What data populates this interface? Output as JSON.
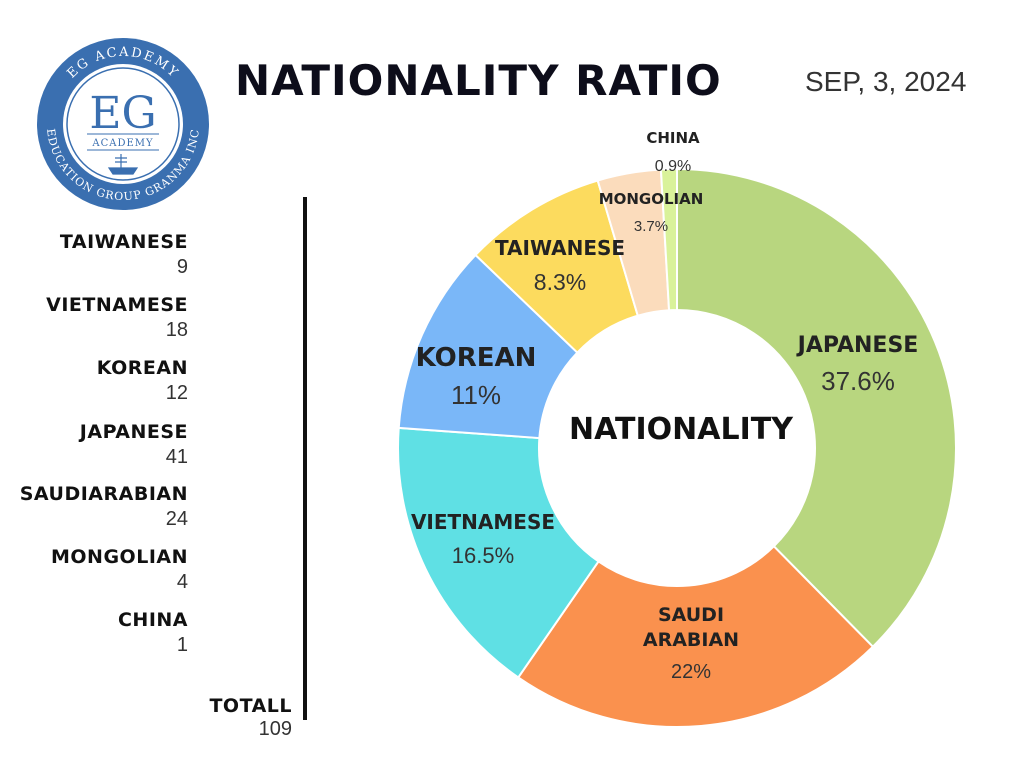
{
  "logo": {
    "top_text": "EG ACADEMY",
    "initials": "EG",
    "sub_text": "ACADEMY",
    "bottom_text": "EDUCATION GROUP GRANMA INC",
    "color": "#3a6fb0"
  },
  "title": "NATIONALITY RATIO",
  "date": "SEP, 3, 2024",
  "legend": [
    {
      "name": "TAIWANESE",
      "value": "9"
    },
    {
      "name": "VIETNAMESE",
      "value": "18"
    },
    {
      "name": "KOREAN",
      "value": "12"
    },
    {
      "name": "JAPANESE",
      "value": "41"
    },
    {
      "name": "SAUDIARABIAN",
      "value": "24"
    },
    {
      "name": "MONGOLIAN",
      "value": "4"
    },
    {
      "name": "CHINA",
      "value": "1"
    }
  ],
  "total": {
    "label": "TOTALL",
    "value": "109"
  },
  "chart_data": {
    "type": "pie",
    "donut": true,
    "center_label": "NATIONALITY",
    "slices": [
      {
        "label": "JAPANESE",
        "pct_label": "37.6%",
        "value": 41,
        "color": "#b8d67f"
      },
      {
        "label": "SAUDI ARABIAN",
        "pct_label": "22%",
        "value": 24,
        "color": "#fa914e"
      },
      {
        "label": "VIETNAMESE",
        "pct_label": "16.5%",
        "value": 18,
        "color": "#5fe0e4"
      },
      {
        "label": "KOREAN",
        "pct_label": "11%",
        "value": 12,
        "color": "#7ab7f8"
      },
      {
        "label": "TAIWANESE",
        "pct_label": "8.3%",
        "value": 9,
        "color": "#fcdb5e"
      },
      {
        "label": "MONGOLIAN",
        "pct_label": "3.7%",
        "value": 4,
        "color": "#fbdcbc"
      },
      {
        "label": "CHINA",
        "pct_label": "0.9%",
        "value": 1,
        "color": "#d9f29a"
      }
    ]
  }
}
